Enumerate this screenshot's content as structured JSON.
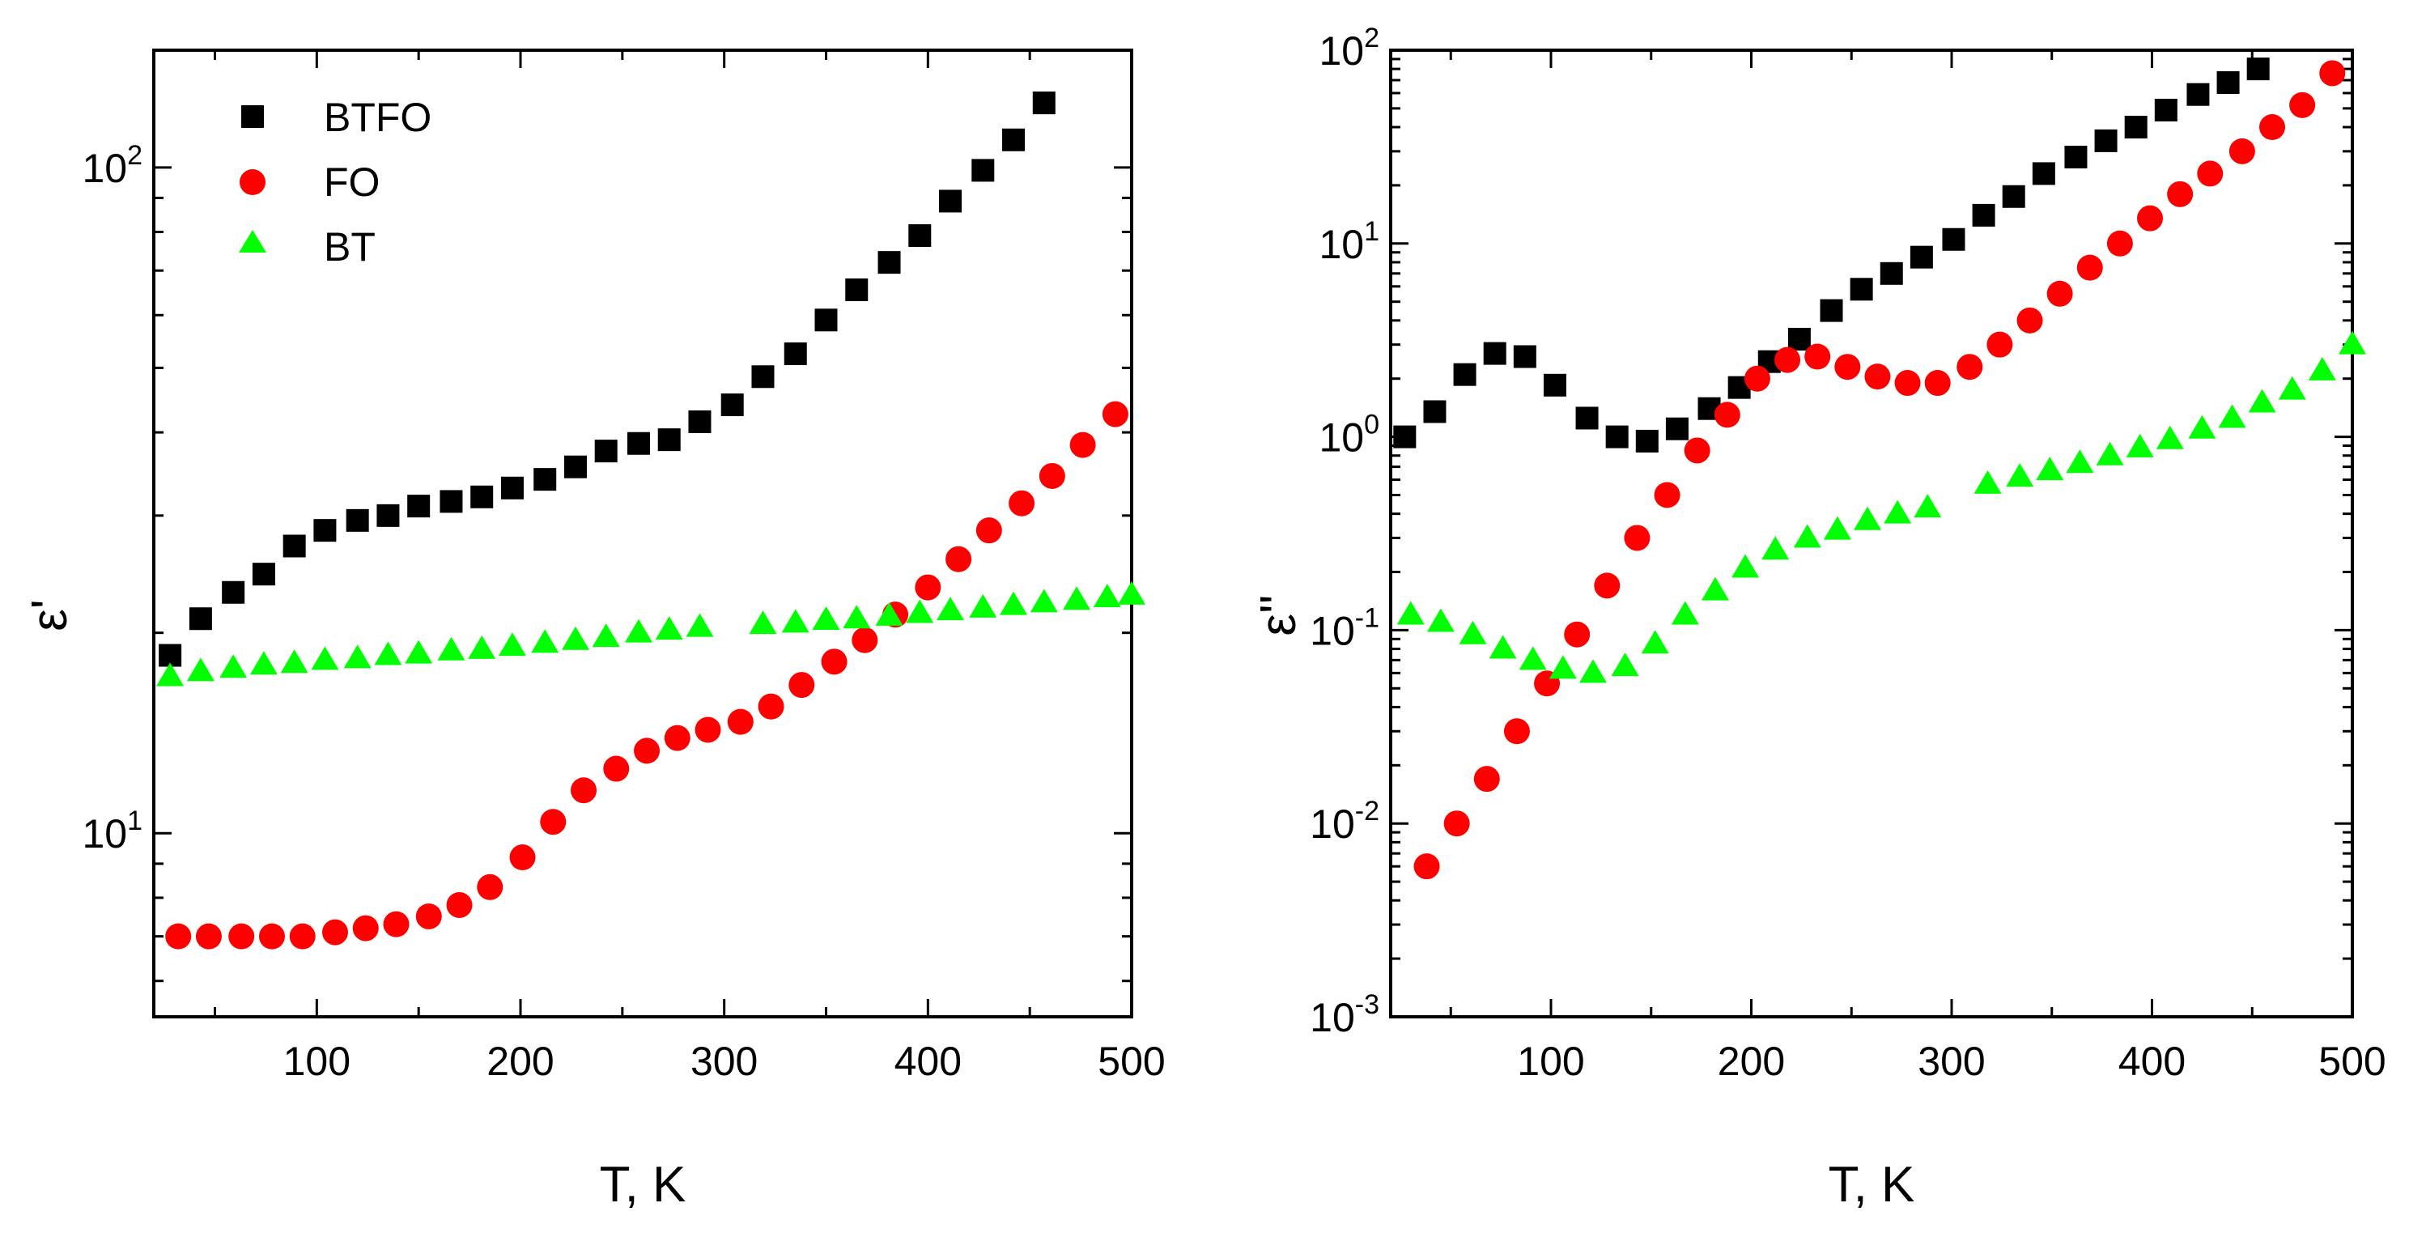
{
  "chart_data": [
    {
      "id": "left",
      "type": "scatter",
      "title": "",
      "xlabel": "T, K",
      "ylabel": "ε'",
      "yscale": "log",
      "xlim": [
        20,
        500
      ],
      "ylim": [
        5.3,
        150
      ],
      "xticks": [
        100,
        200,
        300,
        400,
        500
      ],
      "xtick_labels": [
        "100",
        "200",
        "300",
        "400",
        "500"
      ],
      "yticks": [
        {
          "value": 10,
          "base": "10",
          "exp": "1"
        },
        {
          "value": 100,
          "base": "10",
          "exp": "2"
        }
      ],
      "legend": {
        "position": "top-left",
        "entries": [
          "BTFO",
          "FO",
          "BT"
        ]
      },
      "series": [
        {
          "name": "BTFO",
          "marker": "square",
          "color": "#000000",
          "x": [
            28,
            43,
            59,
            74,
            89,
            104,
            120,
            135,
            150,
            166,
            181,
            196,
            212,
            227,
            242,
            258,
            273,
            288,
            304,
            319,
            335,
            350,
            365,
            381,
            396,
            411,
            427,
            442,
            457
          ],
          "y": [
            18.5,
            21,
            23,
            24.5,
            27,
            28.5,
            29.5,
            30,
            31,
            31.5,
            32,
            33,
            34,
            35.5,
            37.5,
            38.5,
            39,
            41.5,
            44,
            48.5,
            52.5,
            59,
            65.5,
            72,
            79,
            89,
            99,
            110,
            125
          ]
        },
        {
          "name": "FO",
          "marker": "circle",
          "color": "#ff0000",
          "x": [
            32,
            47,
            63,
            78,
            93,
            109,
            124,
            139,
            155,
            170,
            185,
            201,
            216,
            231,
            247,
            262,
            277,
            292,
            308,
            323,
            338,
            354,
            369,
            384,
            400,
            415,
            430,
            446,
            461,
            476,
            492
          ],
          "y": [
            7,
            7,
            7,
            7,
            7,
            7.1,
            7.2,
            7.3,
            7.5,
            7.8,
            8.3,
            9.2,
            10.4,
            11.6,
            12.5,
            13.3,
            13.9,
            14.3,
            14.7,
            15.5,
            16.7,
            18.1,
            19.5,
            21.3,
            23.4,
            25.8,
            28.5,
            31.3,
            34.4,
            38.3,
            42.6
          ]
        },
        {
          "name": "BT",
          "marker": "triangle",
          "color": "#00ff00",
          "x": [
            28,
            43,
            59,
            74,
            89,
            104,
            120,
            135,
            150,
            166,
            181,
            196,
            212,
            227,
            242,
            258,
            273,
            288,
            319,
            335,
            350,
            365,
            381,
            396,
            411,
            427,
            442,
            457,
            473,
            488,
            500
          ],
          "y": [
            17.2,
            17.5,
            17.7,
            17.9,
            18,
            18.2,
            18.3,
            18.5,
            18.6,
            18.8,
            18.9,
            19.1,
            19.3,
            19.5,
            19.7,
            20,
            20.2,
            20.4,
            20.6,
            20.7,
            20.9,
            21,
            21.2,
            21.4,
            21.6,
            21.8,
            22,
            22.2,
            22.4,
            22.6,
            22.8
          ]
        }
      ]
    },
    {
      "id": "right",
      "type": "scatter",
      "title": "",
      "xlabel": "T, K",
      "ylabel": "ε''",
      "yscale": "log",
      "xlim": [
        20,
        500
      ],
      "ylim": [
        0.001,
        100
      ],
      "xticks": [
        100,
        200,
        300,
        400,
        500
      ],
      "xtick_labels": [
        "100",
        "200",
        "300",
        "400",
        "500"
      ],
      "yticks": [
        {
          "value": 0.001,
          "base": "10",
          "exp": "-3"
        },
        {
          "value": 0.01,
          "base": "10",
          "exp": "-2"
        },
        {
          "value": 0.1,
          "base": "10",
          "exp": "-1"
        },
        {
          "value": 1,
          "base": "10",
          "exp": "0"
        },
        {
          "value": 10,
          "base": "10",
          "exp": "1"
        },
        {
          "value": 100,
          "base": "10",
          "exp": "2"
        }
      ],
      "series": [
        {
          "name": "BTFO",
          "marker": "square",
          "color": "#000000",
          "x": [
            27,
            42,
            57,
            72,
            87,
            102,
            118,
            133,
            148,
            163,
            179,
            194,
            209,
            224,
            240,
            255,
            270,
            285,
            301,
            316,
            331,
            346,
            362,
            377,
            392,
            407,
            423,
            438,
            453
          ],
          "y": [
            1,
            1.35,
            2.1,
            2.7,
            2.6,
            1.85,
            1.25,
            1,
            0.95,
            1.1,
            1.4,
            1.8,
            2.45,
            3.2,
            4.5,
            5.8,
            7,
            8.5,
            10.5,
            14,
            17.5,
            23,
            28,
            34,
            40,
            49,
            59,
            68,
            80
          ]
        },
        {
          "name": "FO",
          "marker": "circle",
          "color": "#ff0000",
          "x": [
            38,
            53,
            68,
            83,
            98,
            113,
            128,
            143,
            158,
            173,
            188,
            203,
            218,
            233,
            248,
            263,
            278,
            293,
            309,
            324,
            339,
            354,
            369,
            384,
            399,
            414,
            429,
            445,
            460,
            475,
            490
          ],
          "y": [
            0.006,
            0.01,
            0.017,
            0.03,
            0.053,
            0.095,
            0.17,
            0.3,
            0.5,
            0.85,
            1.3,
            2,
            2.5,
            2.6,
            2.3,
            2.05,
            1.9,
            1.9,
            2.3,
            3,
            4,
            5.5,
            7.5,
            10,
            13.5,
            18,
            23,
            30,
            40,
            52,
            76
          ]
        },
        {
          "name": "BT",
          "marker": "triangle",
          "color": "#00ff00",
          "x": [
            30,
            45,
            61,
            76,
            91,
            106,
            121,
            137,
            152,
            167,
            182,
            197,
            212,
            228,
            243,
            258,
            273,
            288,
            318,
            334,
            349,
            364,
            379,
            394,
            409,
            425,
            440,
            455,
            470,
            485,
            500
          ],
          "y": [
            0.12,
            0.11,
            0.095,
            0.08,
            0.07,
            0.063,
            0.06,
            0.065,
            0.085,
            0.12,
            0.16,
            0.21,
            0.26,
            0.3,
            0.33,
            0.37,
            0.4,
            0.43,
            0.57,
            0.62,
            0.67,
            0.73,
            0.8,
            0.88,
            0.97,
            1.1,
            1.25,
            1.5,
            1.75,
            2.2,
            3
          ]
        }
      ]
    }
  ]
}
